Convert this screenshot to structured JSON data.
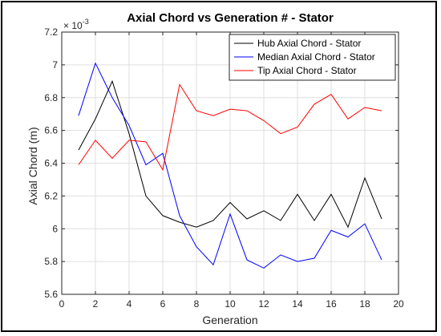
{
  "chart_data": {
    "type": "line",
    "title": "Axial Chord vs Generation # - Stator",
    "xlabel": "Generation",
    "ylabel": "Axial Chord (m)",
    "exponent_label": "× 10",
    "exponent_power": "-3",
    "xlim": [
      0,
      20
    ],
    "ylim": [
      5.6,
      7.2
    ],
    "xticks": [
      "0",
      "2",
      "4",
      "6",
      "8",
      "10",
      "12",
      "14",
      "16",
      "18",
      "20"
    ],
    "yticks": [
      "5.6",
      "5.8",
      "6",
      "6.2",
      "6.4",
      "6.6",
      "6.8",
      "7",
      "7.2"
    ],
    "grid": true,
    "legend_position": "top-right",
    "x": [
      1,
      2,
      3,
      4,
      5,
      6,
      7,
      8,
      9,
      10,
      11,
      12,
      13,
      14,
      15,
      16,
      17,
      18,
      19
    ],
    "series": [
      {
        "name": "Hub Axial Chord - Stator",
        "color": "#000000",
        "values": [
          6.48,
          6.67,
          6.9,
          6.58,
          6.2,
          6.08,
          6.04,
          6.01,
          6.05,
          6.16,
          6.06,
          6.11,
          6.05,
          6.21,
          6.05,
          6.21,
          6.01,
          6.31,
          6.06
        ]
      },
      {
        "name": "Median Axial Chord - Stator",
        "color": "#0000ff",
        "values": [
          6.69,
          7.01,
          6.8,
          6.63,
          6.39,
          6.46,
          6.08,
          5.89,
          5.78,
          6.09,
          5.81,
          5.76,
          5.84,
          5.8,
          5.82,
          5.99,
          5.95,
          6.03,
          5.81
        ]
      },
      {
        "name": "Tip Axial Chord - Stator",
        "color": "#ff0000",
        "values": [
          6.39,
          6.54,
          6.43,
          6.54,
          6.53,
          6.36,
          6.88,
          6.72,
          6.69,
          6.73,
          6.72,
          6.66,
          6.58,
          6.62,
          6.76,
          6.82,
          6.67,
          6.74,
          6.72
        ]
      }
    ]
  }
}
